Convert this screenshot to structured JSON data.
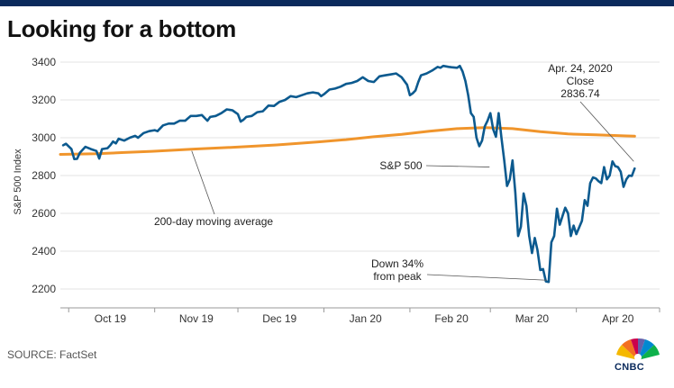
{
  "header": {
    "title": "Looking for a bottom"
  },
  "footer": {
    "source": "SOURCE: FactSet",
    "logo_text": "CNBC"
  },
  "chart_data": {
    "type": "line",
    "title": "Looking for a bottom",
    "xlabel": "",
    "ylabel": "S&P 500 Index",
    "ylim": [
      2100,
      3500
    ],
    "yticks": [
      2200,
      2400,
      2600,
      2800,
      3000,
      3200,
      3400
    ],
    "x_tick_labels": [
      "Oct 19",
      "Nov 19",
      "Dec 19",
      "Jan 20",
      "Feb 20",
      "Mar 20",
      "Apr 20"
    ],
    "x_tick_days": [
      0,
      31,
      61,
      92,
      123,
      152,
      183
    ],
    "xlim_days": [
      -3,
      213
    ],
    "grid": "horizontal",
    "series": [
      {
        "name": "S&P 500",
        "color": "#0c5a8f",
        "points": [
          [
            -2,
            2960
          ],
          [
            -1,
            2968
          ],
          [
            1,
            2940
          ],
          [
            2,
            2887
          ],
          [
            3,
            2888
          ],
          [
            4,
            2920
          ],
          [
            6,
            2952
          ],
          [
            8,
            2940
          ],
          [
            10,
            2930
          ],
          [
            11,
            2890
          ],
          [
            12,
            2940
          ],
          [
            14,
            2945
          ],
          [
            15,
            2960
          ],
          [
            16,
            2980
          ],
          [
            17,
            2970
          ],
          [
            18,
            2995
          ],
          [
            20,
            2985
          ],
          [
            22,
            3000
          ],
          [
            24,
            3010
          ],
          [
            25,
            3000
          ],
          [
            27,
            3025
          ],
          [
            29,
            3035
          ],
          [
            31,
            3040
          ],
          [
            32,
            3035
          ],
          [
            34,
            3065
          ],
          [
            36,
            3075
          ],
          [
            38,
            3075
          ],
          [
            40,
            3090
          ],
          [
            42,
            3090
          ],
          [
            44,
            3115
          ],
          [
            46,
            3115
          ],
          [
            48,
            3120
          ],
          [
            50,
            3090
          ],
          [
            51,
            3110
          ],
          [
            53,
            3115
          ],
          [
            55,
            3130
          ],
          [
            57,
            3150
          ],
          [
            59,
            3145
          ],
          [
            61,
            3125
          ],
          [
            62,
            3085
          ],
          [
            63,
            3095
          ],
          [
            64,
            3110
          ],
          [
            66,
            3115
          ],
          [
            68,
            3135
          ],
          [
            70,
            3140
          ],
          [
            72,
            3170
          ],
          [
            74,
            3168
          ],
          [
            76,
            3190
          ],
          [
            78,
            3200
          ],
          [
            80,
            3220
          ],
          [
            82,
            3215
          ],
          [
            84,
            3225
          ],
          [
            86,
            3235
          ],
          [
            88,
            3240
          ],
          [
            90,
            3235
          ],
          [
            91,
            3220
          ],
          [
            92,
            3230
          ],
          [
            94,
            3255
          ],
          [
            96,
            3260
          ],
          [
            98,
            3270
          ],
          [
            100,
            3285
          ],
          [
            102,
            3290
          ],
          [
            104,
            3300
          ],
          [
            106,
            3320
          ],
          [
            108,
            3300
          ],
          [
            110,
            3295
          ],
          [
            112,
            3325
          ],
          [
            114,
            3330
          ],
          [
            116,
            3335
          ],
          [
            118,
            3340
          ],
          [
            120,
            3320
          ],
          [
            122,
            3280
          ],
          [
            123,
            3225
          ],
          [
            124,
            3235
          ],
          [
            125,
            3250
          ],
          [
            126,
            3295
          ],
          [
            127,
            3330
          ],
          [
            129,
            3340
          ],
          [
            131,
            3355
          ],
          [
            133,
            3375
          ],
          [
            134,
            3370
          ],
          [
            135,
            3380
          ],
          [
            137,
            3375
          ],
          [
            138,
            3373
          ],
          [
            140,
            3370
          ],
          [
            141,
            3380
          ],
          [
            142,
            3350
          ],
          [
            143,
            3300
          ],
          [
            144,
            3225
          ],
          [
            145,
            3130
          ],
          [
            146,
            3110
          ],
          [
            147,
            3000
          ],
          [
            148,
            2955
          ],
          [
            149,
            2985
          ],
          [
            150,
            3060
          ],
          [
            151,
            3090
          ],
          [
            152,
            3130
          ],
          [
            153,
            3045
          ],
          [
            154,
            3005
          ],
          [
            155,
            3130
          ],
          [
            156,
            3000
          ],
          [
            157,
            2880
          ],
          [
            158,
            2745
          ],
          [
            159,
            2780
          ],
          [
            160,
            2880
          ],
          [
            161,
            2710
          ],
          [
            162,
            2480
          ],
          [
            163,
            2530
          ],
          [
            164,
            2705
          ],
          [
            165,
            2640
          ],
          [
            166,
            2480
          ],
          [
            167,
            2390
          ],
          [
            168,
            2470
          ],
          [
            169,
            2405
          ],
          [
            170,
            2300
          ],
          [
            171,
            2305
          ],
          [
            172,
            2240
          ],
          [
            173,
            2237
          ],
          [
            174,
            2447
          ],
          [
            175,
            2480
          ],
          [
            176,
            2625
          ],
          [
            177,
            2540
          ],
          [
            178,
            2585
          ],
          [
            179,
            2630
          ],
          [
            180,
            2600
          ],
          [
            181,
            2480
          ],
          [
            182,
            2535
          ],
          [
            183,
            2490
          ],
          [
            185,
            2560
          ],
          [
            186,
            2670
          ],
          [
            187,
            2640
          ],
          [
            188,
            2760
          ],
          [
            189,
            2790
          ],
          [
            190,
            2785
          ],
          [
            191,
            2770
          ],
          [
            192,
            2760
          ],
          [
            193,
            2845
          ],
          [
            194,
            2780
          ],
          [
            195,
            2800
          ],
          [
            196,
            2875
          ],
          [
            197,
            2850
          ],
          [
            198,
            2845
          ],
          [
            199,
            2820
          ],
          [
            200,
            2740
          ],
          [
            201,
            2780
          ],
          [
            202,
            2800
          ],
          [
            203,
            2798
          ],
          [
            204,
            2837
          ]
        ]
      },
      {
        "name": "200-day moving average",
        "color": "#f0952c",
        "points": [
          [
            -3,
            2912
          ],
          [
            10,
            2915
          ],
          [
            20,
            2922
          ],
          [
            30,
            2928
          ],
          [
            45,
            2940
          ],
          [
            60,
            2950
          ],
          [
            75,
            2962
          ],
          [
            90,
            2978
          ],
          [
            100,
            2990
          ],
          [
            110,
            3005
          ],
          [
            120,
            3018
          ],
          [
            130,
            3035
          ],
          [
            140,
            3048
          ],
          [
            150,
            3054
          ],
          [
            160,
            3048
          ],
          [
            170,
            3032
          ],
          [
            180,
            3020
          ],
          [
            190,
            3015
          ],
          [
            200,
            3010
          ],
          [
            204,
            3008
          ]
        ]
      }
    ],
    "annotations": [
      {
        "text": "S&P 500",
        "x_day": 153,
        "y": 2845
      },
      {
        "text": "200-day moving average",
        "x_day": 45,
        "y": 2940
      },
      {
        "text": "Down 34%",
        "x_day": 173,
        "y": 2237
      },
      {
        "text": "from peak",
        "x_day": 173,
        "y": 2237
      },
      {
        "text": "Apr. 24, 2020",
        "x_day": 204,
        "y": 2837
      },
      {
        "text": "Close",
        "x_day": 204,
        "y": 2837
      },
      {
        "text": "2836.74",
        "x_day": 204,
        "y": 2837
      }
    ]
  }
}
